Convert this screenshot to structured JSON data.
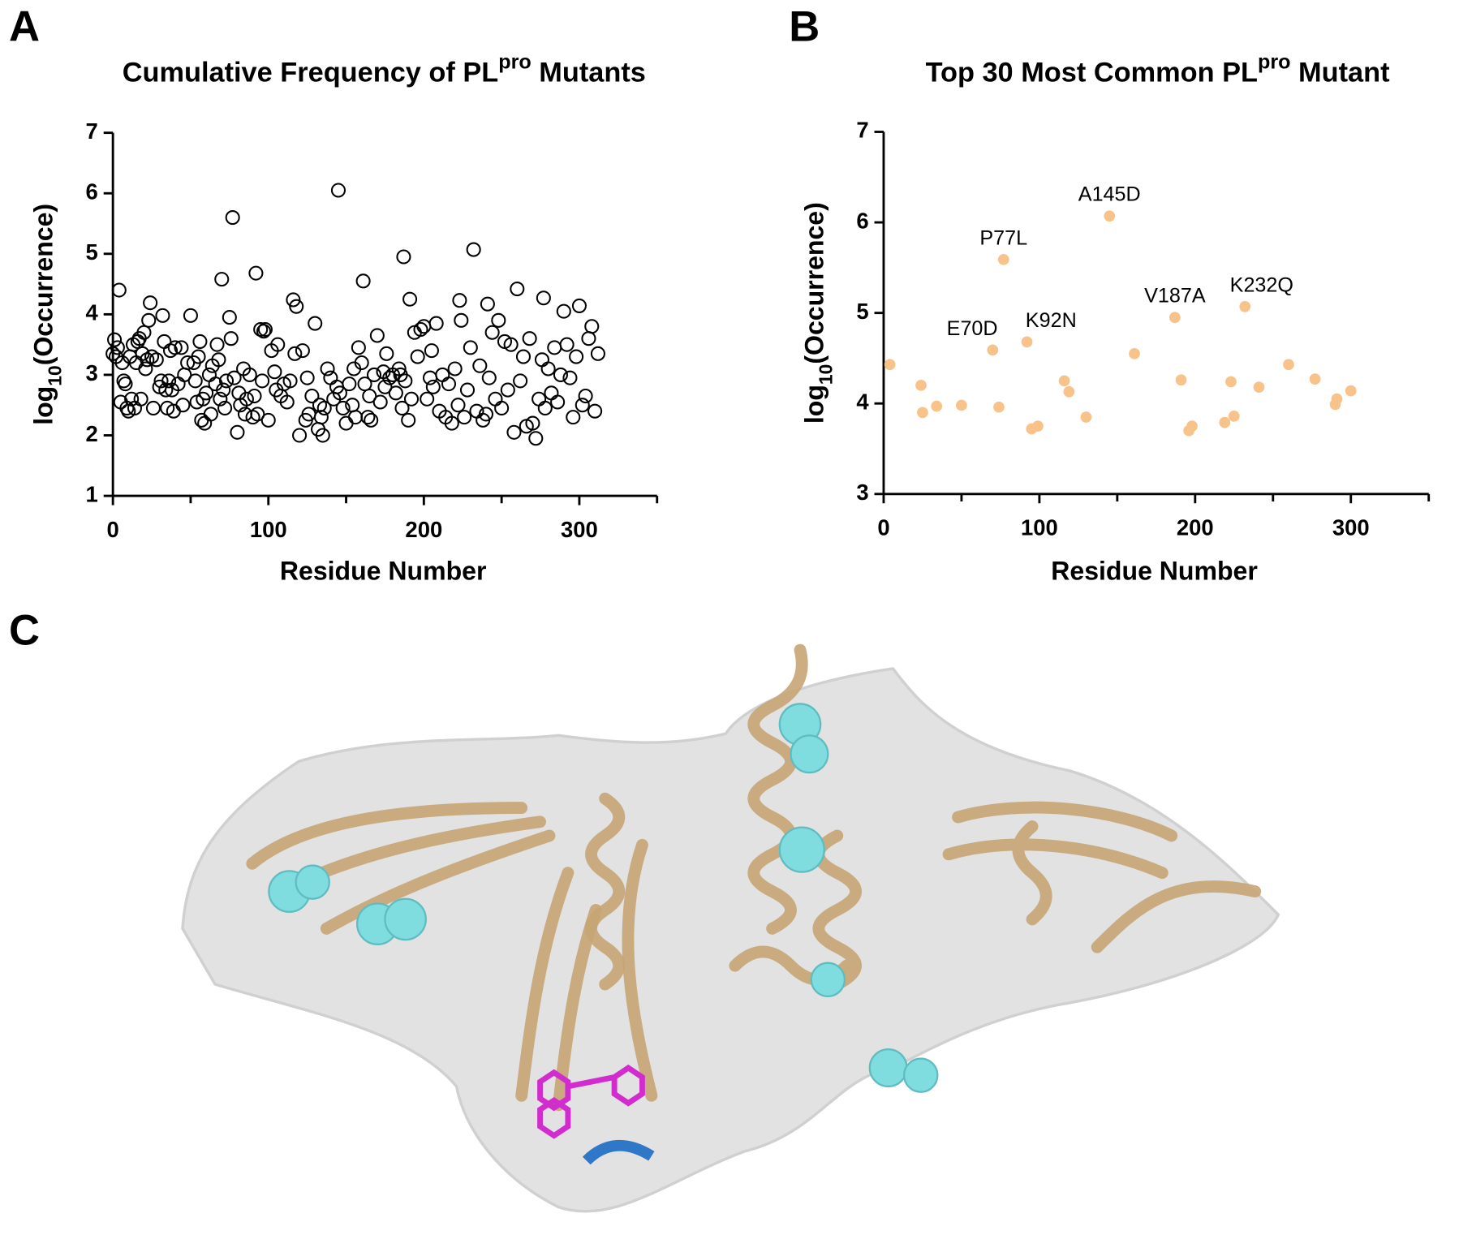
{
  "panel_labels": [
    "A",
    "B",
    "C"
  ],
  "chart_data": [
    {
      "type": "scatter",
      "title": [
        "Cumulative Frequency of PL",
        "pro",
        " Mutants"
      ],
      "xlabel": "Residue Number",
      "ylabel": [
        "log",
        "10",
        "(Occurrence)"
      ],
      "marker": "open",
      "color": "#000000",
      "xlim": [
        0,
        350
      ],
      "xticks": [
        0,
        100,
        200,
        300
      ],
      "xminor_ticks": [
        50,
        150,
        250,
        350
      ],
      "ylim": [
        1,
        7
      ],
      "yticks": [
        1,
        2,
        3,
        4,
        5,
        6,
        7
      ],
      "x": [
        0,
        1,
        2,
        3,
        4,
        5,
        6,
        7,
        8,
        9,
        10,
        11,
        12,
        13,
        14,
        15,
        16,
        17,
        18,
        19,
        20,
        21,
        22,
        23,
        24,
        25,
        26,
        28,
        30,
        31,
        32,
        33,
        34,
        35,
        36,
        37,
        38,
        39,
        40,
        42,
        44,
        45,
        46,
        48,
        50,
        52,
        53,
        54,
        55,
        56,
        57,
        58,
        59,
        60,
        62,
        63,
        64,
        66,
        67,
        68,
        69,
        70,
        71,
        72,
        73,
        75,
        76,
        77,
        78,
        80,
        81,
        82,
        84,
        85,
        86,
        88,
        90,
        91,
        92,
        93,
        95,
        96,
        97,
        98,
        100,
        102,
        104,
        105,
        106,
        108,
        110,
        112,
        114,
        116,
        117,
        118,
        120,
        122,
        124,
        125,
        126,
        128,
        130,
        132,
        133,
        134,
        135,
        136,
        138,
        140,
        142,
        144,
        145,
        146,
        148,
        150,
        152,
        154,
        155,
        156,
        158,
        160,
        161,
        162,
        164,
        165,
        166,
        168,
        170,
        172,
        174,
        175,
        176,
        178,
        180,
        182,
        184,
        185,
        186,
        187,
        188,
        190,
        191,
        192,
        194,
        196,
        198,
        200,
        202,
        204,
        205,
        206,
        208,
        210,
        212,
        214,
        216,
        218,
        220,
        222,
        223,
        224,
        226,
        228,
        230,
        232,
        234,
        236,
        238,
        240,
        241,
        242,
        244,
        246,
        248,
        250,
        252,
        254,
        256,
        258,
        260,
        262,
        264,
        266,
        268,
        270,
        272,
        274,
        276,
        277,
        278,
        280,
        282,
        284,
        286,
        288,
        290,
        292,
        294,
        296,
        298,
        300,
        302,
        304,
        306,
        308,
        310,
        312
      ],
      "values": [
        3.35,
        3.58,
        3.3,
        3.45,
        4.4,
        2.55,
        3.2,
        2.9,
        2.85,
        2.45,
        2.4,
        3.3,
        2.6,
        3.5,
        2.45,
        3.2,
        3.55,
        3.6,
        2.6,
        3.35,
        3.7,
        3.1,
        3.25,
        3.9,
        4.19,
        3.3,
        2.45,
        3.25,
        2.8,
        2.9,
        3.98,
        3.55,
        2.75,
        2.45,
        2.9,
        3.4,
        2.75,
        2.4,
        3.45,
        2.85,
        3.45,
        2.5,
        3.0,
        3.2,
        3.98,
        3.2,
        2.9,
        2.55,
        3.3,
        3.55,
        2.25,
        2.6,
        2.2,
        2.7,
        3.0,
        2.35,
        3.15,
        2.85,
        3.5,
        3.25,
        2.6,
        4.58,
        2.75,
        2.45,
        2.9,
        3.95,
        3.6,
        5.6,
        2.95,
        2.05,
        2.7,
        2.5,
        3.1,
        2.35,
        2.6,
        3.0,
        2.3,
        2.65,
        4.68,
        2.35,
        3.75,
        2.9,
        3.72,
        3.75,
        2.25,
        3.4,
        3.05,
        2.75,
        3.5,
        2.65,
        2.85,
        2.55,
        2.9,
        4.24,
        3.35,
        4.13,
        2.0,
        3.4,
        2.25,
        2.95,
        2.35,
        2.65,
        3.85,
        2.1,
        2.5,
        2.3,
        2.0,
        2.45,
        3.1,
        2.95,
        2.6,
        2.8,
        6.05,
        2.7,
        2.45,
        2.2,
        2.85,
        2.5,
        3.1,
        2.3,
        3.45,
        3.2,
        4.55,
        2.85,
        2.3,
        2.65,
        2.25,
        3.0,
        3.65,
        2.55,
        3.05,
        2.8,
        3.35,
        2.95,
        3.0,
        2.7,
        3.1,
        3.0,
        2.45,
        4.95,
        2.9,
        2.25,
        4.25,
        2.6,
        3.7,
        3.3,
        3.75,
        3.8,
        2.6,
        2.95,
        3.4,
        2.8,
        3.85,
        2.4,
        3.0,
        2.3,
        2.85,
        2.2,
        3.1,
        2.5,
        4.23,
        3.9,
        2.3,
        2.75,
        3.45,
        5.07,
        2.4,
        3.15,
        2.25,
        2.35,
        4.17,
        2.95,
        3.7,
        2.6,
        3.9,
        2.45,
        3.55,
        2.75,
        3.5,
        2.05,
        4.42,
        2.9,
        3.3,
        2.15,
        3.6,
        2.2,
        1.95,
        2.6,
        3.25,
        4.27,
        2.45,
        3.1,
        2.7,
        3.45,
        2.55,
        3.0,
        4.05,
        3.5,
        2.95,
        2.3,
        3.3,
        4.14,
        2.5,
        2.65,
        3.6,
        3.8,
        2.4,
        3.35
      ]
    },
    {
      "type": "scatter",
      "title": [
        "Top 30 Most Common PL",
        "pro",
        " Mutant"
      ],
      "xlabel": "Residue Number",
      "ylabel": [
        "log",
        "10",
        "(Occurrence)"
      ],
      "marker": "filled",
      "color": "#f8c38a",
      "xlim": [
        0,
        350
      ],
      "xticks": [
        0,
        100,
        200,
        300
      ],
      "xminor_ticks": [
        50,
        150,
        250,
        350
      ],
      "ylim": [
        3,
        7
      ],
      "yticks": [
        3,
        4,
        5,
        6,
        7
      ],
      "x": [
        4,
        24,
        25,
        34,
        50,
        70,
        74,
        77,
        92,
        95,
        99,
        116,
        119,
        130,
        145,
        161,
        187,
        191,
        196,
        198,
        219,
        223,
        225,
        232,
        241,
        260,
        277,
        290,
        291,
        300
      ],
      "values": [
        4.43,
        4.2,
        3.9,
        3.97,
        3.98,
        4.59,
        3.96,
        5.59,
        4.68,
        3.72,
        3.75,
        4.25,
        4.13,
        3.85,
        6.07,
        4.55,
        4.95,
        4.26,
        3.7,
        3.75,
        3.79,
        4.24,
        3.86,
        5.07,
        4.18,
        4.43,
        4.27,
        3.99,
        4.05,
        4.14
      ],
      "point_labels": [
        null,
        null,
        null,
        null,
        null,
        "E70D",
        null,
        "P77L",
        "K92N",
        null,
        null,
        null,
        null,
        null,
        "A145D",
        null,
        "V187A",
        null,
        null,
        null,
        null,
        null,
        null,
        "K232Q",
        null,
        null,
        null,
        null,
        null,
        null
      ]
    }
  ]
}
